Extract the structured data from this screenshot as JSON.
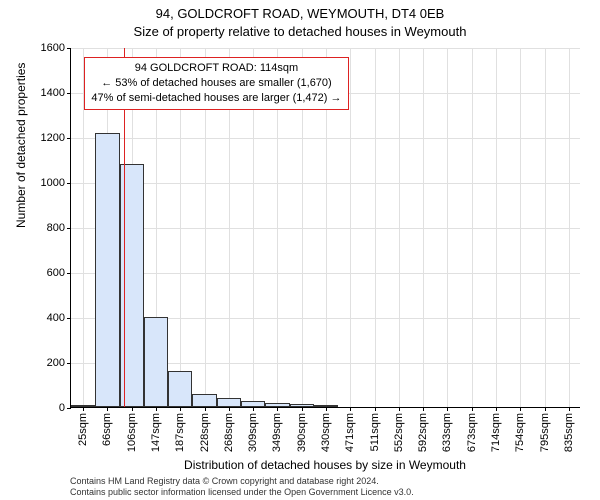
{
  "title": "94, GOLDCROFT ROAD, WEYMOUTH, DT4 0EB",
  "subtitle": "Size of property relative to detached houses in Weymouth",
  "chart": {
    "type": "histogram",
    "background_color": "#ffffff",
    "grid_color": "#e0e0e0",
    "axis_color": "#000000",
    "bar_fill": "#d8e6fa",
    "bar_stroke": "#333333",
    "ref_color": "#d22",
    "ylabel": "Number of detached properties",
    "xlabel": "Distribution of detached houses by size in Weymouth",
    "label_fontsize": 12,
    "tick_fontsize": 11,
    "ylim": [
      0,
      1600
    ],
    "ytick_step": 200,
    "xlim": [
      0,
      21
    ],
    "x_tick_labels": [
      "25sqm",
      "66sqm",
      "106sqm",
      "147sqm",
      "187sqm",
      "228sqm",
      "268sqm",
      "309sqm",
      "349sqm",
      "390sqm",
      "430sqm",
      "471sqm",
      "511sqm",
      "552sqm",
      "592sqm",
      "633sqm",
      "673sqm",
      "714sqm",
      "754sqm",
      "795sqm",
      "835sqm"
    ],
    "values": [
      10,
      1220,
      1080,
      400,
      160,
      60,
      40,
      25,
      18,
      12,
      9
    ],
    "bar_width": 1.0,
    "reference_index": 2.2
  },
  "annotation": {
    "line1": "94 GOLDCROFT ROAD: 114sqm",
    "line2": "← 53% of detached houses are smaller (1,670)",
    "line3": "47% of semi-detached houses are larger (1,472) →",
    "border_color": "#d22",
    "fontsize": 11
  },
  "credits": {
    "line1": "Contains HM Land Registry data © Crown copyright and database right 2024.",
    "line2": "Contains public sector information licensed under the Open Government Licence v3.0."
  }
}
